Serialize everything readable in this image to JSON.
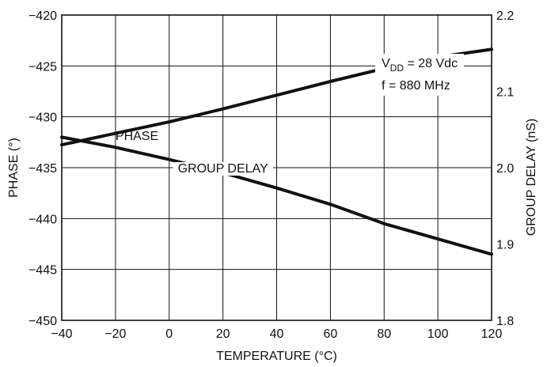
{
  "chart_data": {
    "type": "line",
    "xlabel": "TEMPERATURE (°C)",
    "ylabel_left": "PHASE (°)",
    "ylabel_right": "GROUP DELAY (nS)",
    "xlim": [
      -40,
      120
    ],
    "ylim_left": [
      -450,
      -420
    ],
    "ylim_right": [
      1.8,
      2.2
    ],
    "x_ticks": [
      "−40",
      "−20",
      "0",
      "20",
      "40",
      "60",
      "80",
      "100",
      "120"
    ],
    "y_left_ticks": [
      "−420",
      "−425",
      "−430",
      "−435",
      "−440",
      "−445",
      "−450"
    ],
    "y_right_ticks": [
      "2.2",
      "2.1",
      "2.0",
      "1.9",
      "1.8"
    ],
    "grid": true,
    "annotation": {
      "vdd_prefix": "V",
      "vdd_sub": "DD",
      "vdd_suffix": " = 28 Vdc",
      "freq": "f = 880 MHz"
    },
    "series": [
      {
        "name": "PHASE",
        "axis": "left",
        "x": [
          -40,
          -20,
          0,
          20,
          40,
          60,
          80,
          100,
          120
        ],
        "y": [
          -432.0,
          -433.0,
          -434.2,
          -435.5,
          -437.0,
          -438.6,
          -440.5,
          -442.0,
          -443.5
        ]
      },
      {
        "name": "GROUP DELAY",
        "axis": "right",
        "x": [
          -40,
          -20,
          0,
          20,
          40,
          60,
          80,
          100,
          120
        ],
        "y": [
          2.03,
          2.045,
          2.06,
          2.077,
          2.095,
          2.113,
          2.13,
          2.145,
          2.155
        ]
      }
    ]
  }
}
